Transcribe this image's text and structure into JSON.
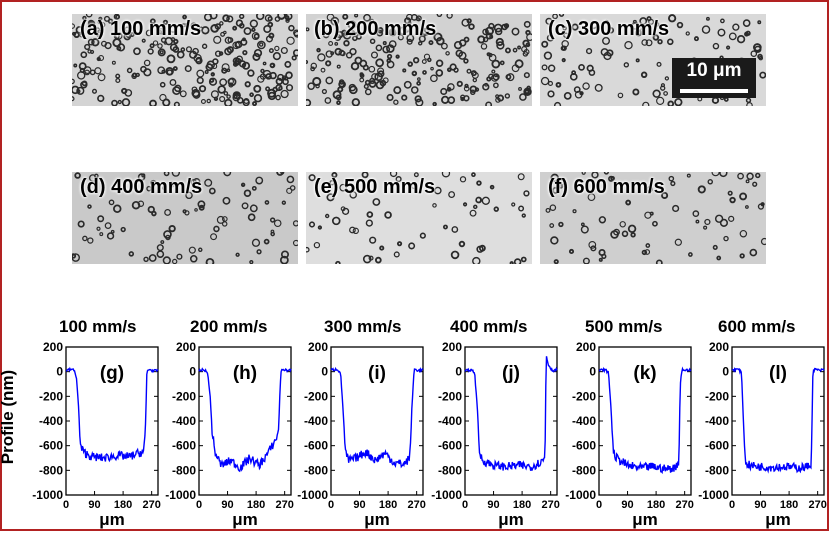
{
  "micrographs": [
    {
      "label": "(a) 100 mm/s",
      "density": 1.0,
      "tone": "#d4d4d4"
    },
    {
      "label": "(b) 200 mm/s",
      "density": 0.85,
      "tone": "#d2d2d2"
    },
    {
      "label": "(c) 300 mm/s",
      "density": 0.45,
      "tone": "#d9d9d9"
    },
    {
      "label": "(d) 400 mm/s",
      "density": 0.35,
      "tone": "#c9c9c9"
    },
    {
      "label": "(e) 500 mm/s",
      "density": 0.25,
      "tone": "#dedede"
    },
    {
      "label": "(f) 600 mm/s",
      "density": 0.3,
      "tone": "#cfcfcf"
    }
  ],
  "scale_bar": {
    "text": "10 μm"
  },
  "colors": {
    "frame": "#b22222",
    "line": "#0000ff"
  },
  "chart_data": [
    {
      "type": "line",
      "title": "100 mm/s",
      "panel": "(g)",
      "xlabel": "μm",
      "ylabel": "Profile (nm)",
      "xlim": [
        0,
        290
      ],
      "ylim": [
        -1000,
        200
      ],
      "xticks": [
        0,
        90,
        180,
        270
      ],
      "yticks": [
        200,
        0,
        -200,
        -400,
        -600,
        -800,
        -1000
      ],
      "x": [
        0,
        20,
        28,
        33,
        40,
        45,
        55,
        80,
        120,
        160,
        200,
        230,
        245,
        250,
        255,
        262,
        275,
        290
      ],
      "y": [
        10,
        20,
        0,
        -50,
        -300,
        -600,
        -650,
        -690,
        -700,
        -680,
        -690,
        -660,
        -650,
        -500,
        0,
        20,
        5,
        10
      ]
    },
    {
      "type": "line",
      "title": "200 mm/s",
      "panel": "(h)",
      "xlabel": "μm",
      "ylabel": "",
      "xlim": [
        0,
        290
      ],
      "ylim": [
        -1000,
        200
      ],
      "xticks": [
        0,
        90,
        180,
        270
      ],
      "yticks": [
        200,
        0,
        -200,
        -400,
        -600,
        -800,
        -1000
      ],
      "x": [
        0,
        18,
        28,
        35,
        42,
        50,
        70,
        100,
        130,
        160,
        190,
        220,
        240,
        250,
        258,
        265,
        275,
        290
      ],
      "y": [
        10,
        15,
        -20,
        -200,
        -500,
        -650,
        -760,
        -720,
        -780,
        -700,
        -760,
        -650,
        -560,
        -500,
        0,
        20,
        10,
        15
      ]
    },
    {
      "type": "line",
      "title": "300 mm/s",
      "panel": "(i)",
      "xlabel": "μm",
      "ylabel": "",
      "xlim": [
        0,
        290
      ],
      "ylim": [
        -1000,
        200
      ],
      "xticks": [
        0,
        90,
        180,
        270
      ],
      "yticks": [
        200,
        0,
        -200,
        -400,
        -600,
        -800,
        -1000
      ],
      "x": [
        0,
        20,
        30,
        38,
        45,
        55,
        80,
        110,
        140,
        170,
        200,
        230,
        248,
        255,
        262,
        275,
        290
      ],
      "y": [
        15,
        20,
        -10,
        -300,
        -650,
        -720,
        -700,
        -650,
        -720,
        -660,
        -740,
        -750,
        -700,
        -300,
        20,
        10,
        15
      ]
    },
    {
      "type": "line",
      "title": "400 mm/s",
      "panel": "(j)",
      "xlabel": "μm",
      "ylabel": "",
      "xlim": [
        0,
        290
      ],
      "ylim": [
        -1000,
        200
      ],
      "xticks": [
        0,
        90,
        180,
        270
      ],
      "yticks": [
        200,
        0,
        -200,
        -400,
        -600,
        -800,
        -1000
      ],
      "x": [
        0,
        20,
        30,
        38,
        45,
        55,
        90,
        130,
        170,
        210,
        240,
        252,
        256,
        262,
        275,
        290
      ],
      "y": [
        5,
        15,
        -5,
        -250,
        -650,
        -720,
        -760,
        -770,
        -760,
        -770,
        -730,
        -700,
        140,
        60,
        10,
        15
      ]
    },
    {
      "type": "line",
      "title": "500 mm/s",
      "panel": "(k)",
      "xlabel": "μm",
      "ylabel": "",
      "xlim": [
        0,
        290
      ],
      "ylim": [
        -1000,
        200
      ],
      "xticks": [
        0,
        90,
        180,
        270
      ],
      "yticks": [
        200,
        0,
        -200,
        -400,
        -600,
        -800,
        -1000
      ],
      "x": [
        0,
        20,
        30,
        38,
        45,
        55,
        90,
        130,
        170,
        210,
        240,
        252,
        256,
        262,
        275,
        290
      ],
      "y": [
        10,
        15,
        -10,
        -300,
        -650,
        -700,
        -760,
        -780,
        -770,
        -790,
        -780,
        -720,
        -100,
        20,
        10,
        15
      ]
    },
    {
      "type": "line",
      "title": "600 mm/s",
      "panel": "(l)",
      "xlabel": "μm",
      "ylabel": "",
      "xlim": [
        0,
        290
      ],
      "ylim": [
        -1000,
        200
      ],
      "xticks": [
        0,
        90,
        180,
        270
      ],
      "yticks": [
        200,
        0,
        -200,
        -400,
        -600,
        -800,
        -1000
      ],
      "x": [
        0,
        20,
        30,
        36,
        42,
        55,
        90,
        130,
        170,
        210,
        240,
        250,
        255,
        262,
        275,
        290
      ],
      "y": [
        15,
        20,
        -10,
        -400,
        -730,
        -760,
        -770,
        -775,
        -770,
        -780,
        -770,
        -740,
        0,
        20,
        10,
        15
      ]
    }
  ]
}
